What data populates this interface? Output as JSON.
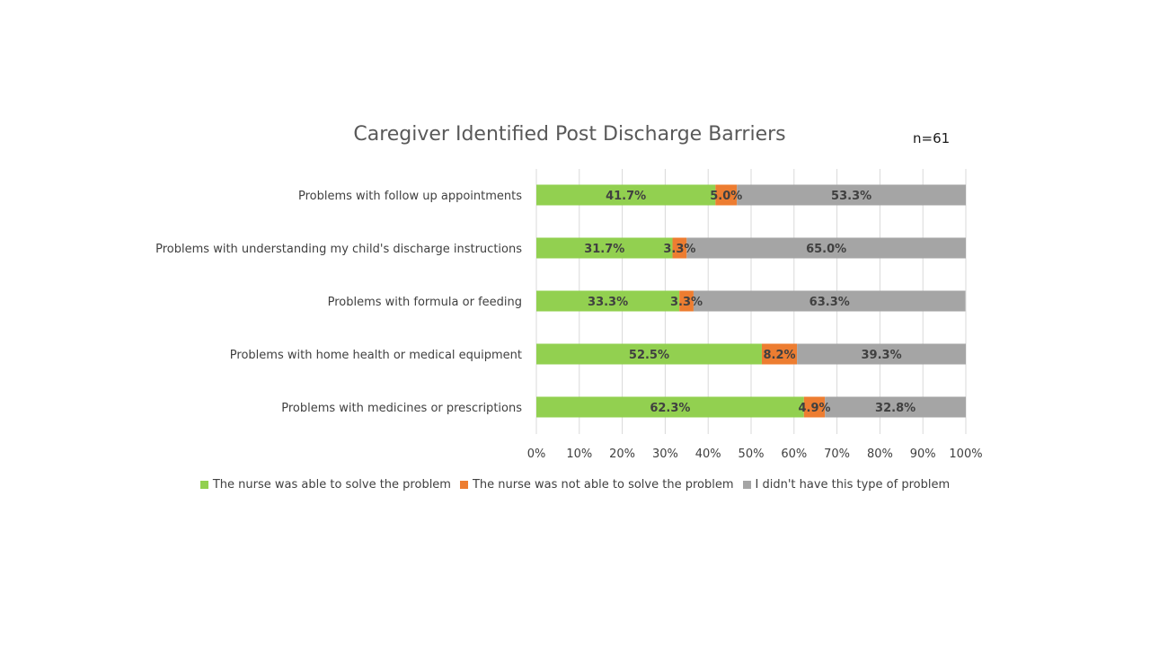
{
  "chart_data": {
    "type": "bar",
    "orientation": "horizontal",
    "stacked": "percent",
    "title": "Caregiver Identified Post Discharge Barriers",
    "annotation": "n=61",
    "categories": [
      "Problems with follow up appointments",
      "Problems with understanding my child's discharge instructions",
      "Problems with formula or feeding",
      "Problems with home health or medical equipment",
      "Problems with medicines or prescriptions"
    ],
    "series": [
      {
        "name": "The nurse was able to solve the problem",
        "color": "#92d050",
        "values": [
          41.7,
          31.7,
          33.3,
          52.5,
          62.3
        ],
        "labels": [
          "41.7%",
          "31.7%",
          "33.3%",
          "52.5%",
          "62.3%"
        ]
      },
      {
        "name": "The nurse was not able to solve the problem",
        "color": "#ed7d31",
        "values": [
          5.0,
          3.3,
          3.3,
          8.2,
          4.9
        ],
        "labels": [
          "5.0%",
          "3.3%",
          "3.3%",
          "8.2%",
          "4.9%"
        ]
      },
      {
        "name": "I didn't have this type of problem",
        "color": "#a5a5a5",
        "values": [
          53.3,
          65.0,
          63.3,
          39.3,
          32.8
        ],
        "labels": [
          "53.3%",
          "65.0%",
          "63.3%",
          "39.3%",
          "32.8%"
        ]
      }
    ],
    "xlim": [
      0,
      100
    ],
    "xticks": [
      "0%",
      "10%",
      "20%",
      "30%",
      "40%",
      "50%",
      "60%",
      "70%",
      "80%",
      "90%",
      "100%"
    ],
    "grid": "vertical",
    "legend_position": "bottom"
  }
}
